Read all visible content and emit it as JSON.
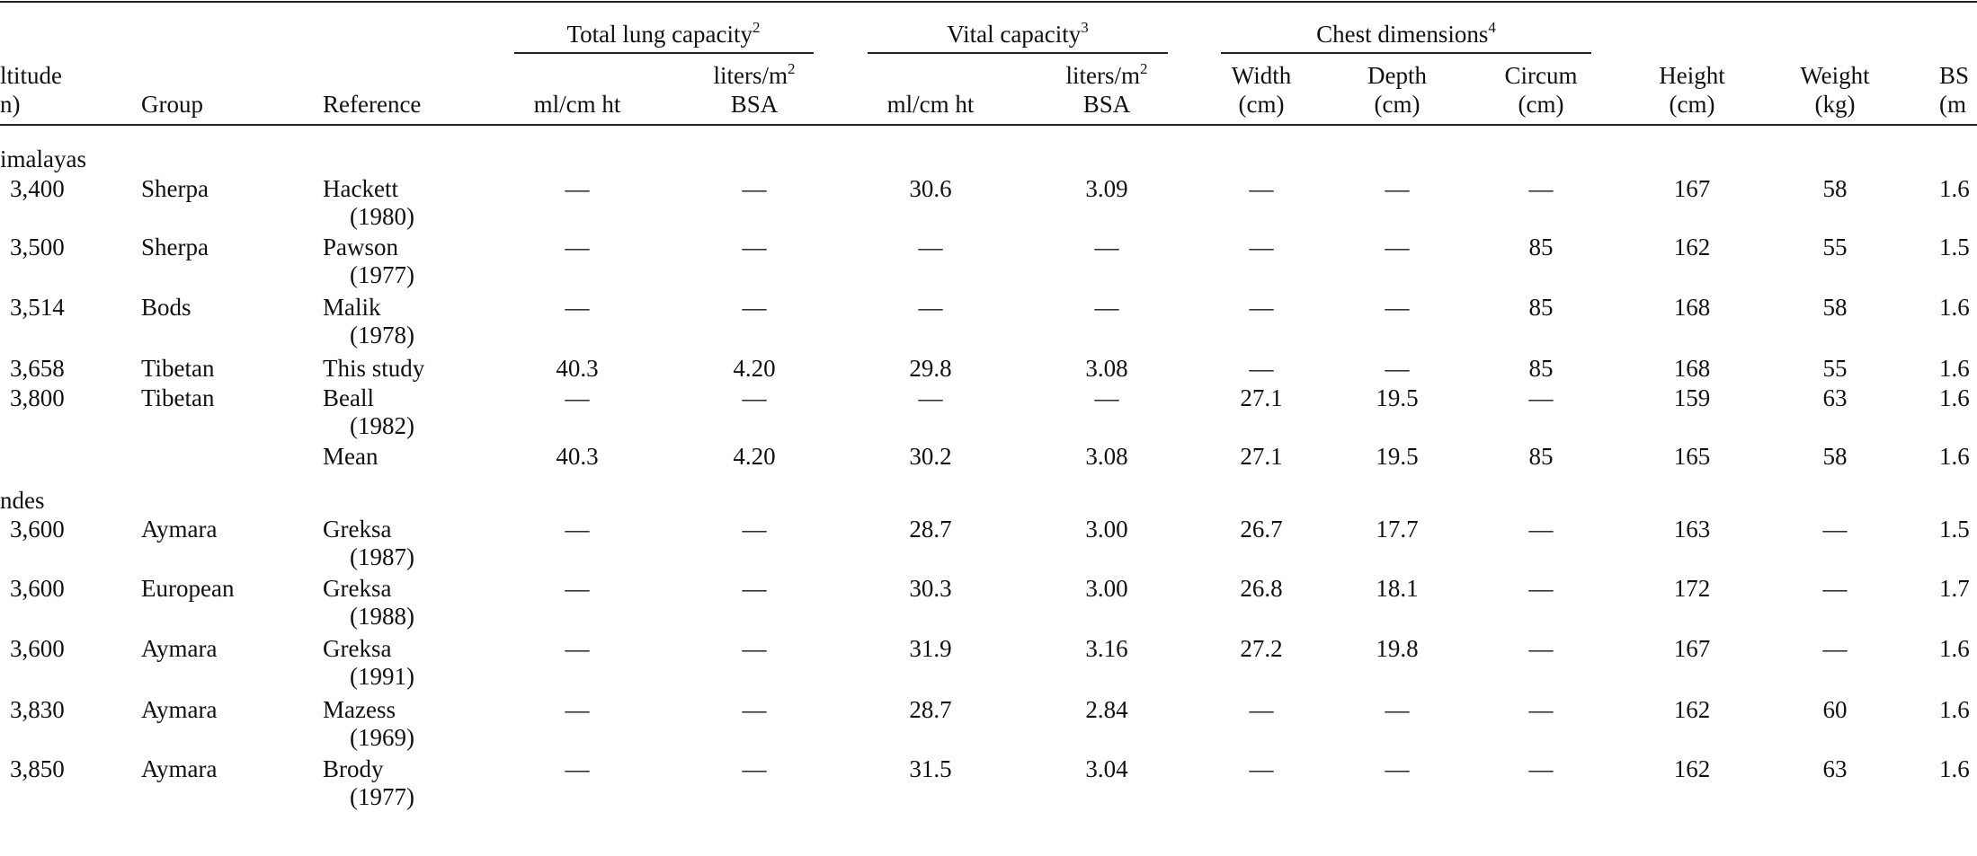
{
  "header": {
    "groups": [
      {
        "text": "Total lung capacity",
        "sup": "2"
      },
      {
        "text": "Vital capacity",
        "sup": "3"
      },
      {
        "text": "Chest dimensions",
        "sup": "4"
      }
    ],
    "columns": [
      {
        "line1": "ltitude",
        "line2": "n)"
      },
      {
        "line2": "Group"
      },
      {
        "line2": "Reference"
      },
      {
        "line2": "ml/cm ht"
      },
      {
        "line1": "liters/m",
        "sup": "2",
        "line2": "BSA"
      },
      {
        "line2": "ml/cm ht"
      },
      {
        "line1": "liters/m",
        "sup": "2",
        "line2": "BSA"
      },
      {
        "line1": "Width",
        "line2": "(cm)"
      },
      {
        "line1": "Depth",
        "line2": "(cm)"
      },
      {
        "line1": "Circum",
        "line2": "(cm)"
      },
      {
        "line1": "Height",
        "line2": "(cm)"
      },
      {
        "line1": "Weight",
        "line2": "(kg)"
      },
      {
        "line1": "BS",
        "line2": "(m"
      }
    ]
  },
  "sections": [
    {
      "title": "imalayas",
      "rows": [
        {
          "altitude": "3,400",
          "group": "Sherpa",
          "reference": "Hackett",
          "year": "(1980)",
          "values": [
            "—",
            "—",
            "30.6",
            "3.09",
            "—",
            "—",
            "—",
            "167",
            "58"
          ],
          "bsa": "1.6"
        },
        {
          "altitude": "3,500",
          "group": "Sherpa",
          "reference": "Pawson",
          "year": "(1977)",
          "values": [
            "—",
            "—",
            "—",
            "—",
            "—",
            "—",
            "85",
            "162",
            "55"
          ],
          "bsa": "1.5"
        },
        {
          "altitude": "3,514",
          "group": "Bods",
          "reference": "Malik",
          "year": "(1978)",
          "values": [
            "—",
            "—",
            "—",
            "—",
            "—",
            "—",
            "85",
            "168",
            "58"
          ],
          "bsa": "1.6"
        },
        {
          "altitude": "3,658",
          "group": "Tibetan",
          "reference": "This study",
          "values": [
            "40.3",
            "4.20",
            "29.8",
            "3.08",
            "—",
            "—",
            "85",
            "168",
            "55"
          ],
          "bsa": "1.6"
        },
        {
          "altitude": "3,800",
          "group": "Tibetan",
          "reference": "Beall",
          "year": "(1982)",
          "values": [
            "—",
            "—",
            "—",
            "—",
            "27.1",
            "19.5",
            "—",
            "159",
            "63"
          ],
          "bsa": "1.6"
        },
        {
          "reference": "Mean",
          "values": [
            "40.3",
            "4.20",
            "30.2",
            "3.08",
            "27.1",
            "19.5",
            "85",
            "165",
            "58"
          ],
          "bsa": "1.6"
        }
      ]
    },
    {
      "title": "ndes",
      "rows": [
        {
          "altitude": "3,600",
          "group": "Aymara",
          "reference": "Greksa",
          "year": "(1987)",
          "values": [
            "—",
            "—",
            "28.7",
            "3.00",
            "26.7",
            "17.7",
            "—",
            "163",
            "—"
          ],
          "bsa": "1.5"
        },
        {
          "altitude": "3,600",
          "group": "European",
          "reference": "Greksa",
          "year": "(1988)",
          "values": [
            "—",
            "—",
            "30.3",
            "3.00",
            "26.8",
            "18.1",
            "—",
            "172",
            "—"
          ],
          "bsa": "1.7"
        },
        {
          "altitude": "3,600",
          "group": "Aymara",
          "reference": "Greksa",
          "year": "(1991)",
          "values": [
            "—",
            "—",
            "31.9",
            "3.16",
            "27.2",
            "19.8",
            "—",
            "167",
            "—"
          ],
          "bsa": "1.6"
        },
        {
          "altitude": "3,830",
          "group": "Aymara",
          "reference": "Mazess",
          "year": "(1969)",
          "values": [
            "—",
            "—",
            "28.7",
            "2.84",
            "—",
            "—",
            "—",
            "162",
            "60"
          ],
          "bsa": "1.6"
        },
        {
          "altitude": "3,850",
          "group": "Aymara",
          "reference": "Brody",
          "year": "(1977)",
          "values": [
            "—",
            "—",
            "31.5",
            "3.04",
            "—",
            "—",
            "—",
            "162",
            "63"
          ],
          "bsa": "1.6"
        }
      ]
    }
  ]
}
